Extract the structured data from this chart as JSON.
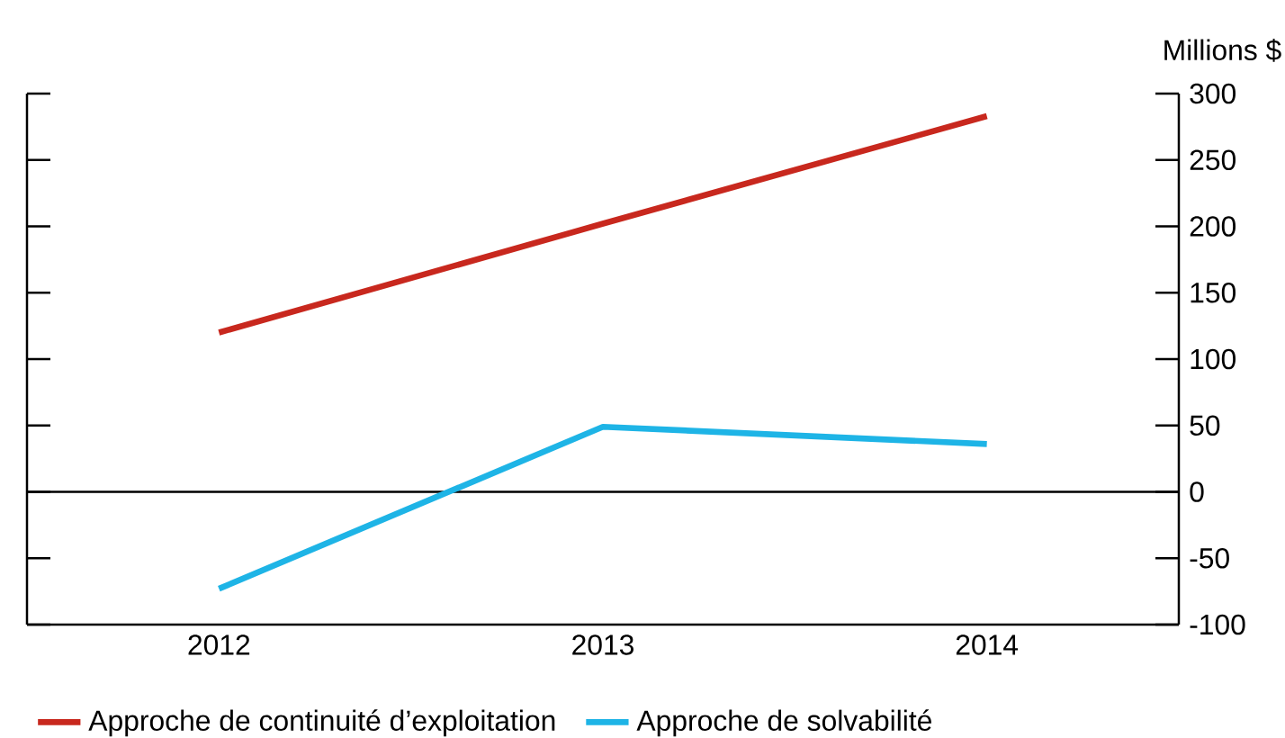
{
  "chart_data": {
    "type": "line",
    "categories": [
      "2012",
      "2013",
      "2014"
    ],
    "ylabel": "Millions $",
    "ylim": [
      -100,
      300
    ],
    "yticks": [
      -100,
      -50,
      0,
      50,
      100,
      150,
      200,
      250,
      300
    ],
    "series": [
      {
        "name": "Approche de continuité d’exploitation",
        "color": "#c8281e",
        "values": [
          120,
          202,
          283
        ]
      },
      {
        "name": "Approche de solvabilité",
        "color": "#1eb4e6",
        "values": [
          -73,
          49,
          36
        ]
      }
    ],
    "ref_lines": [
      {
        "axis": "y",
        "value": 0,
        "color": "#000000"
      }
    ],
    "legend": "bottom left"
  }
}
